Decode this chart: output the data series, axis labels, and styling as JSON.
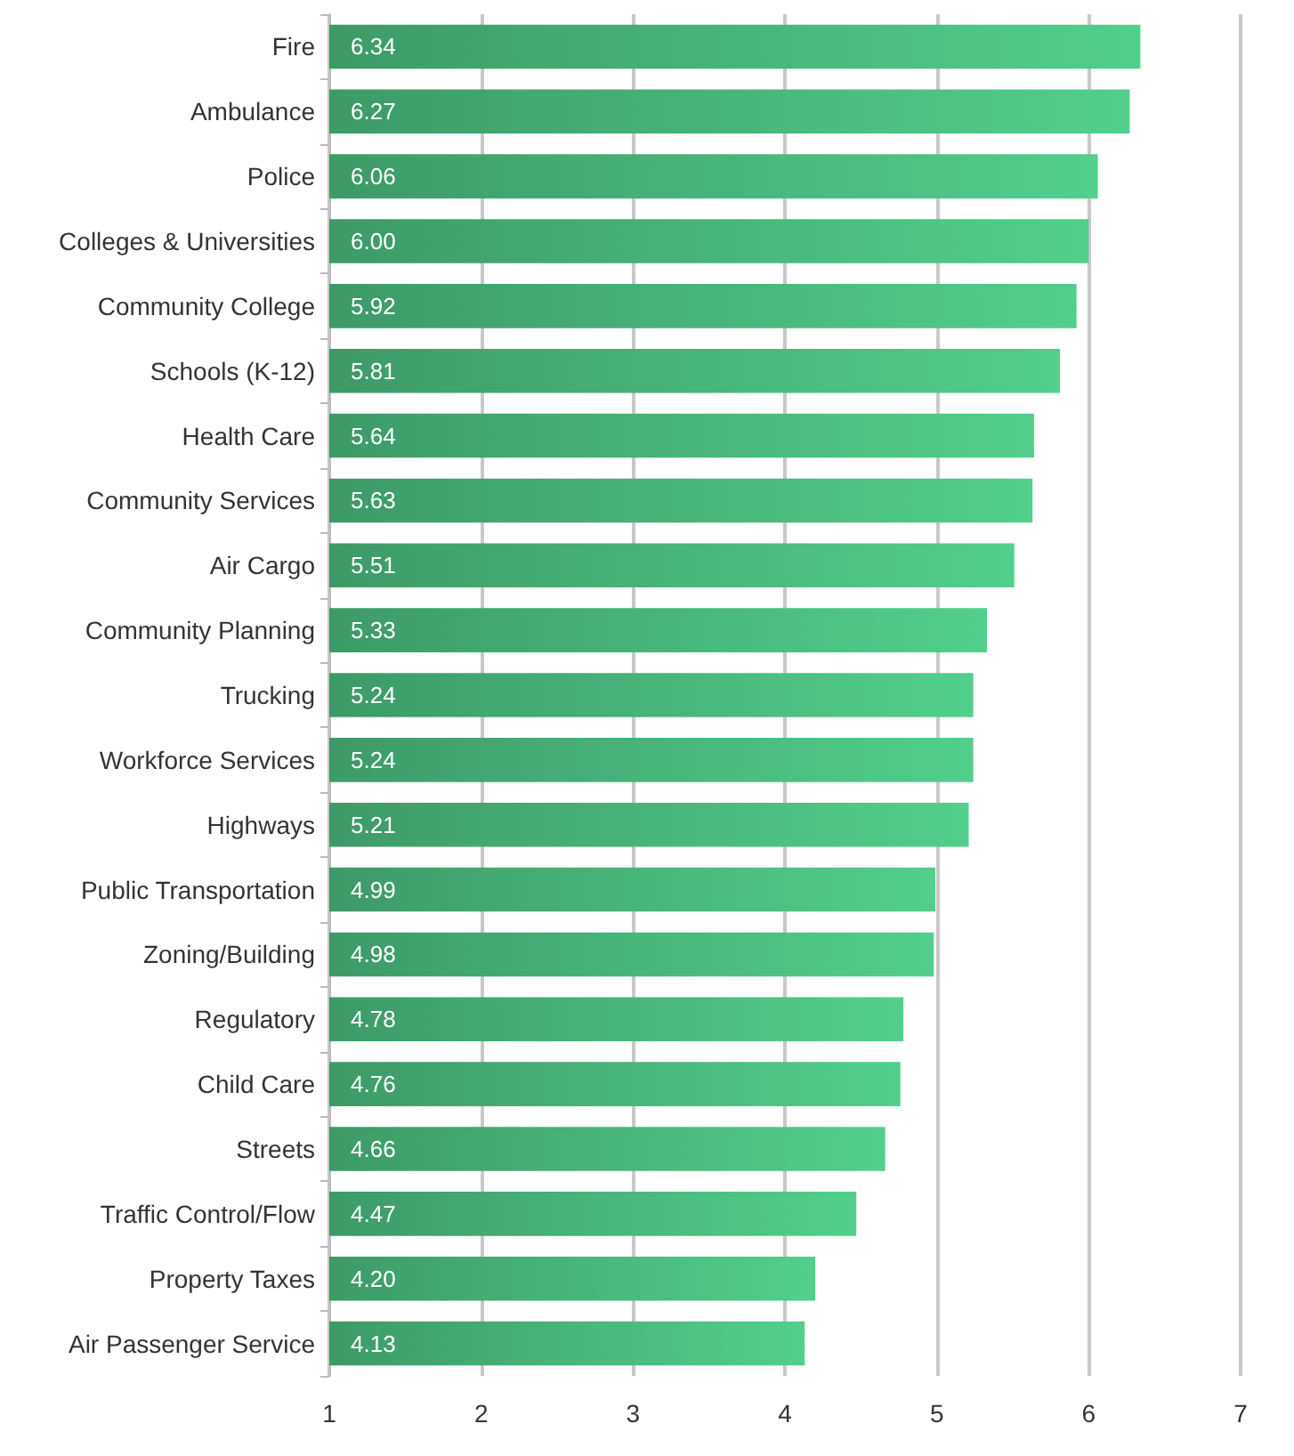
{
  "chart_data": {
    "type": "bar",
    "orientation": "horizontal",
    "categories": [
      "Fire",
      "Ambulance",
      "Police",
      "Colleges & Universities",
      "Community College",
      "Schools (K-12)",
      "Health Care",
      "Community Services",
      "Air Cargo",
      "Community Planning",
      "Trucking",
      "Workforce Services",
      "Highways",
      "Public Transportation",
      "Zoning/Building",
      "Regulatory",
      "Child Care",
      "Streets",
      "Traffic Control/Flow",
      "Property Taxes",
      "Air Passenger Service"
    ],
    "values": [
      6.34,
      6.27,
      6.06,
      6.0,
      5.92,
      5.81,
      5.64,
      5.63,
      5.51,
      5.33,
      5.24,
      5.24,
      5.21,
      4.99,
      4.98,
      4.78,
      4.76,
      4.66,
      4.47,
      4.2,
      4.13
    ],
    "value_labels": [
      "6.34",
      "6.27",
      "6.06",
      "6.00",
      "5.92",
      "5.81",
      "5.64",
      "5.63",
      "5.51",
      "5.33",
      "5.24",
      "5.24",
      "5.21",
      "4.99",
      "4.98",
      "4.78",
      "4.76",
      "4.66",
      "4.47",
      "4.20",
      "4.13"
    ],
    "color": "#3d9a68",
    "xlim": [
      1,
      7
    ],
    "xticks": [
      1,
      2,
      3,
      4,
      5,
      6,
      7
    ],
    "grid": "x"
  }
}
